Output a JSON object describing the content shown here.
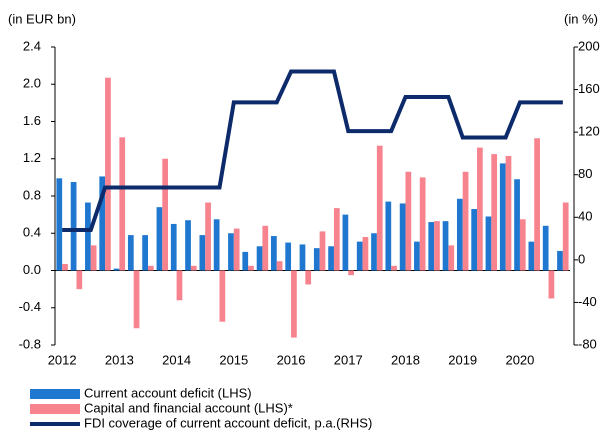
{
  "chart_data": {
    "type": "bar_line",
    "y_label": "(in EUR bn)",
    "y2_label": "(in %)",
    "categories": [
      "2012",
      null,
      null,
      null,
      "2013",
      null,
      null,
      null,
      "2014",
      null,
      null,
      null,
      "2015",
      null,
      null,
      null,
      "2016",
      null,
      null,
      null,
      "2017",
      null,
      null,
      null,
      "2018",
      null,
      null,
      null,
      "2019",
      null,
      null,
      null,
      "2020",
      null,
      null,
      null
    ],
    "series": [
      {
        "name": "Current account deficit (LHS)",
        "color": "#1f77d0",
        "kind": "bar",
        "values": [
          0.99,
          0.95,
          0.73,
          1.01,
          0.02,
          0.38,
          0.38,
          0.68,
          0.5,
          0.54,
          0.38,
          0.55,
          0.4,
          0.2,
          0.26,
          0.37,
          0.3,
          0.28,
          0.24,
          0.26,
          0.6,
          0.31,
          0.4,
          0.74,
          0.72,
          0.31,
          0.52,
          0.53,
          0.77,
          0.66,
          0.58,
          1.15,
          0.98,
          0.31,
          0.48,
          0.21
        ]
      },
      {
        "name": "Capital and financial account (LHS)*",
        "color": "#f7838f",
        "kind": "bar",
        "values": [
          0.07,
          -0.2,
          0.27,
          2.07,
          1.43,
          -0.62,
          0.05,
          1.2,
          -0.32,
          0.05,
          0.73,
          -0.55,
          0.45,
          0.05,
          0.48,
          0.1,
          -0.72,
          -0.15,
          0.42,
          0.67,
          -0.05,
          0.36,
          1.34,
          0.05,
          1.06,
          1.0,
          0.53,
          0.27,
          1.06,
          1.32,
          1.25,
          1.23,
          0.55,
          1.42,
          -0.3,
          0.73
        ]
      },
      {
        "name": "FDI coverage of current account deficit, p.a.(RHS)",
        "color": "#0d2a6b",
        "kind": "line",
        "axis": "y2",
        "values": [
          28,
          28,
          28,
          68,
          68,
          68,
          68,
          68,
          68,
          68,
          68,
          68,
          148,
          148,
          148,
          148,
          177,
          177,
          177,
          177,
          121,
          121,
          121,
          121,
          153,
          153,
          153,
          153,
          115,
          115,
          115,
          115,
          148,
          148,
          148,
          148
        ]
      }
    ],
    "ylim": [
      -0.8,
      2.4
    ],
    "yticks": [
      {
        "value": -0.8,
        "label": "-0.8"
      },
      {
        "value": -0.4,
        "label": "-0.4"
      },
      {
        "value": 0,
        "label": "0.0"
      },
      {
        "value": 0.4,
        "label": "0.4"
      },
      {
        "value": 0.8,
        "label": "0.8"
      },
      {
        "value": 1.2,
        "label": "1.2"
      },
      {
        "value": 1.6,
        "label": "1.6"
      },
      {
        "value": 2,
        "label": "2.0"
      },
      {
        "value": 2.4,
        "label": "2.4"
      }
    ],
    "y2lim": [
      -80,
      200
    ],
    "y2ticks": [
      -80,
      -40,
      0,
      40,
      80,
      120,
      160,
      200
    ],
    "grid": false
  }
}
